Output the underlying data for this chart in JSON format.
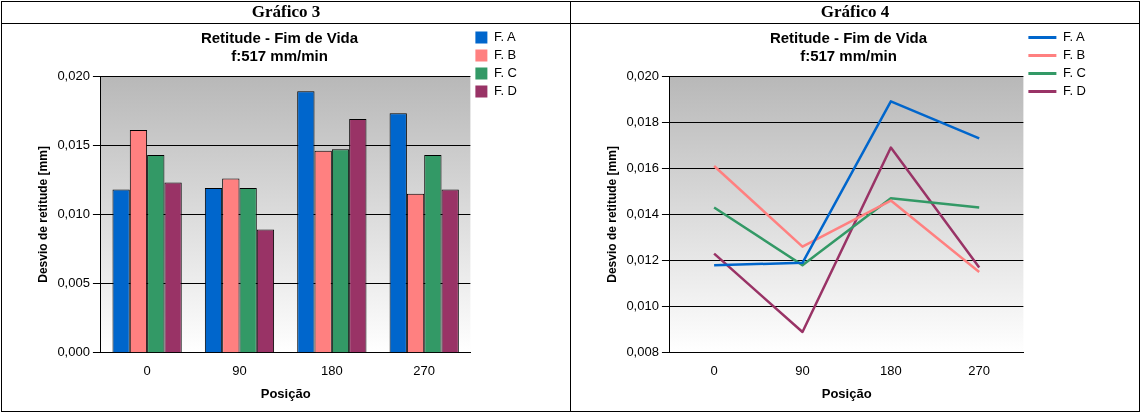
{
  "chart_data": [
    {
      "type": "bar",
      "title": "Retitude - Fim de Vida",
      "subtitle": "f:517 mm/min",
      "xlabel": "Posição",
      "ylabel": "Desvio de retitude [mm]",
      "annotations": [
        "Gráfico 3"
      ],
      "categories": [
        "0",
        "90",
        "180",
        "270"
      ],
      "series": [
        {
          "name": "F. A",
          "color": "#0066cc",
          "values": [
            0.0118,
            0.0119,
            0.0189,
            0.0173
          ]
        },
        {
          "name": "F. B",
          "color": "#ff8080",
          "values": [
            0.0161,
            0.0126,
            0.0146,
            0.0115
          ]
        },
        {
          "name": "F. C",
          "color": "#339966",
          "values": [
            0.0143,
            0.0119,
            0.0147,
            0.0143
          ]
        },
        {
          "name": "F. D",
          "color": "#993366",
          "values": [
            0.0123,
            0.0089,
            0.0169,
            0.0118
          ]
        }
      ],
      "ylim": [
        0,
        0.02
      ],
      "yticks": [
        {
          "value": 0,
          "label": "0,000"
        },
        {
          "value": 0.005,
          "label": "0,005"
        },
        {
          "value": 0.01,
          "label": "0,010"
        },
        {
          "value": 0.015,
          "label": "0,015"
        },
        {
          "value": 0.02,
          "label": "0,020"
        }
      ],
      "grid": "y",
      "legend": "top right"
    },
    {
      "type": "line",
      "title": "Retitude - Fim de Vida",
      "subtitle": "f:517 mm/min",
      "xlabel": "Posição",
      "ylabel": "Desvio de retitude [mm]",
      "annotations": [
        "Gráfico 4"
      ],
      "categories": [
        "0",
        "90",
        "180",
        "270"
      ],
      "series": [
        {
          "name": "F. A",
          "color": "#0066cc",
          "values": [
            0.0118,
            0.0119,
            0.0189,
            0.0173
          ]
        },
        {
          "name": "F. B",
          "color": "#ff8080",
          "values": [
            0.0161,
            0.0126,
            0.0146,
            0.0115
          ]
        },
        {
          "name": "F. C",
          "color": "#339966",
          "values": [
            0.0143,
            0.0118,
            0.0147,
            0.0143
          ]
        },
        {
          "name": "F. D",
          "color": "#993366",
          "values": [
            0.0123,
            0.0089,
            0.0169,
            0.0117
          ]
        }
      ],
      "ylim": [
        0.008,
        0.02
      ],
      "yticks": [
        {
          "value": 0.008,
          "label": "0,008"
        },
        {
          "value": 0.01,
          "label": "0,010"
        },
        {
          "value": 0.012,
          "label": "0,012"
        },
        {
          "value": 0.014,
          "label": "0,014"
        },
        {
          "value": 0.016,
          "label": "0,016"
        },
        {
          "value": 0.018,
          "label": "0,018"
        },
        {
          "value": 0.02,
          "label": "0,020"
        }
      ],
      "grid": "y",
      "legend": "top right",
      "marker": "none"
    }
  ]
}
